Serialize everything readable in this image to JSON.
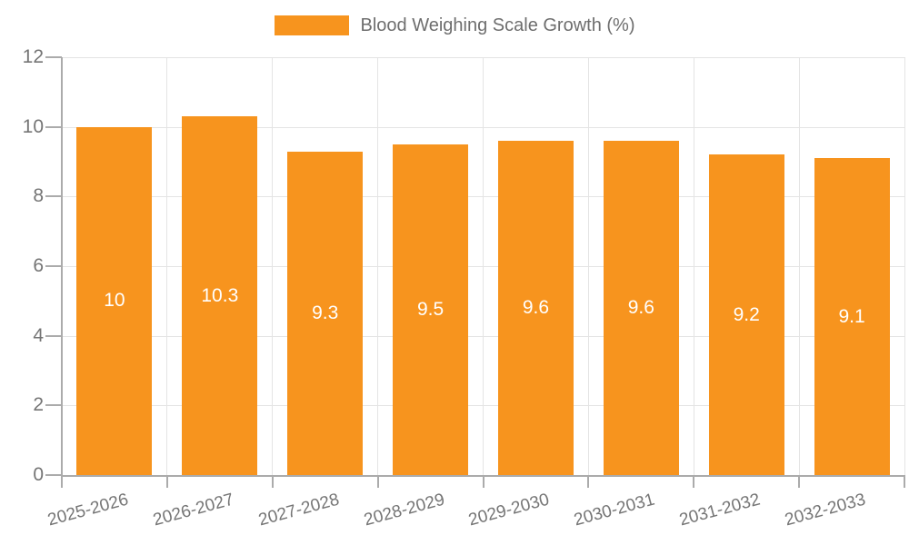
{
  "legend": {
    "label": "Blood Weighing Scale Growth (%)"
  },
  "colors": {
    "bar": "#F7941E",
    "gridline": "#E4E4E4",
    "axis": "#ABABAB",
    "axis_label": "#757575",
    "legend_text": "#6E6E6E",
    "value_label": "#FFFFFF",
    "background": "#FFFFFF"
  },
  "chart_data": {
    "type": "bar",
    "title": "Blood Weighing Scale Growth (%)",
    "categories": [
      "2025-2026",
      "2026-2027",
      "2027-2028",
      "2028-2029",
      "2029-2030",
      "2030-2031",
      "2031-2032",
      "2032-2033"
    ],
    "values": [
      10,
      10.3,
      9.3,
      9.5,
      9.6,
      9.6,
      9.2,
      9.1
    ],
    "value_labels": [
      "10",
      "10.3",
      "9.3",
      "9.5",
      "9.6",
      "9.6",
      "9.2",
      "9.1"
    ],
    "xlabel": "",
    "ylabel": "",
    "ylim": [
      0,
      12
    ],
    "yticks": [
      0,
      2,
      4,
      6,
      8,
      10,
      12
    ],
    "grid": true,
    "legend_position": "top-center",
    "bar_label_position": "inside-center",
    "x_label_rotation_deg": 15
  }
}
